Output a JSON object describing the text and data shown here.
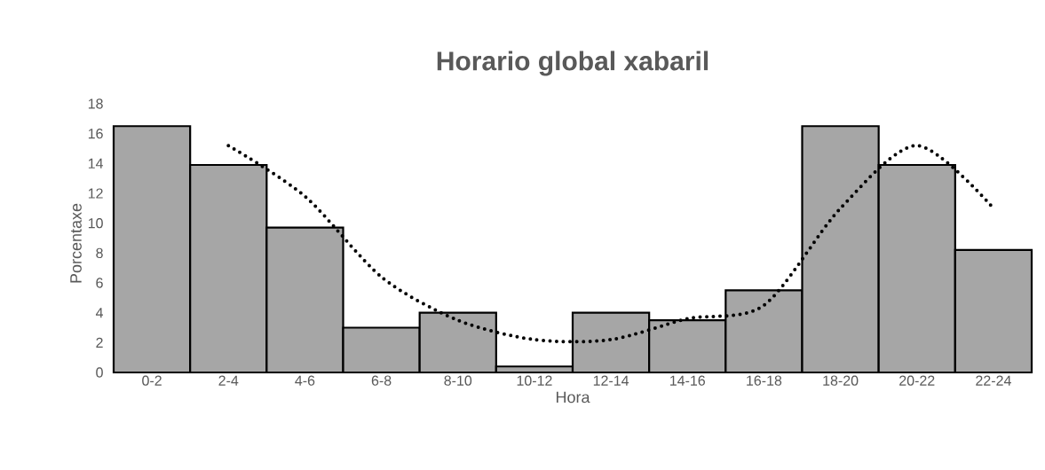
{
  "chart_data": {
    "type": "bar",
    "title": "Horario global xabaril",
    "xlabel": "Hora",
    "ylabel": "Porcentaxe",
    "categories": [
      "0-2",
      "2-4",
      "4-6",
      "6-8",
      "8-10",
      "10-12",
      "12-14",
      "14-16",
      "16-18",
      "18-20",
      "20-22",
      "22-24"
    ],
    "series": [
      {
        "color": "#a6a6a6",
        "values": [
          16.5,
          13.9,
          9.7,
          3.0,
          4.0,
          0.4,
          4.0,
          3.5,
          5.5,
          16.5,
          13.9,
          8.2
        ]
      },
      {
        "type": "line",
        "color": "#000000",
        "line_style": "dotted",
        "values": [
          null,
          15.2,
          11.8,
          6.4,
          3.5,
          2.2,
          2.2,
          3.6,
          4.5,
          11.0,
          15.2,
          11.0
        ]
      }
    ],
    "ylim": [
      0,
      18
    ],
    "yticks": [
      0,
      2,
      4,
      6,
      8,
      10,
      12,
      14,
      16,
      18
    ]
  }
}
